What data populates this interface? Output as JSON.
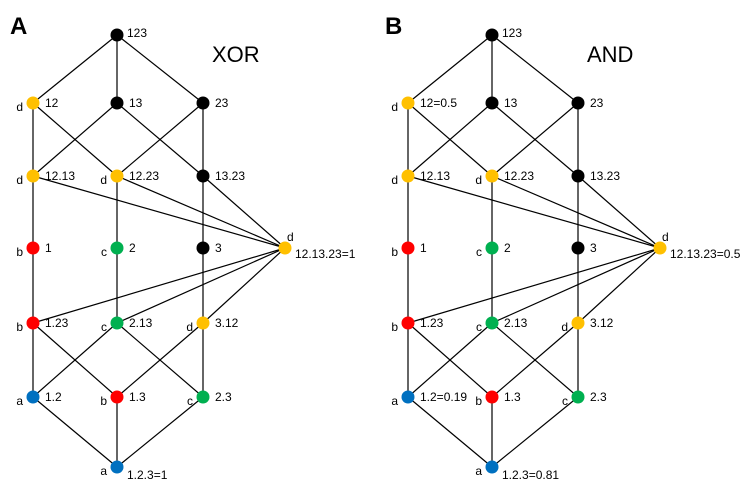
{
  "colors": {
    "black": "#000000",
    "yellow": "#FFC000",
    "red": "#FF0000",
    "green": "#00B050",
    "blue": "#0070C0"
  },
  "panels": [
    {
      "letter": "A",
      "title": "XOR",
      "nodes": {
        "n123": {
          "label": "123",
          "side": "",
          "color": "black"
        },
        "n12": {
          "label": "12",
          "side": "d",
          "color": "yellow"
        },
        "n13": {
          "label": "13",
          "side": "",
          "color": "black"
        },
        "n23": {
          "label": "23",
          "side": "",
          "color": "black"
        },
        "n12_13": {
          "label": "12.13",
          "side": "d",
          "color": "yellow"
        },
        "n12_23": {
          "label": "12.23",
          "side": "d",
          "color": "yellow"
        },
        "n13_23": {
          "label": "13.23",
          "side": "",
          "color": "black"
        },
        "n1": {
          "label": "1",
          "side": "b",
          "color": "red"
        },
        "n2": {
          "label": "2",
          "side": "c",
          "color": "green"
        },
        "n3": {
          "label": "3",
          "side": "",
          "color": "black"
        },
        "nD": {
          "label": "12.13.23=1",
          "side": "d",
          "color": "yellow"
        },
        "n1_23": {
          "label": "1.23",
          "side": "b",
          "color": "red"
        },
        "n2_13": {
          "label": "2.13",
          "side": "c",
          "color": "green"
        },
        "n3_12": {
          "label": "3.12",
          "side": "d",
          "color": "yellow"
        },
        "n1_2": {
          "label": "1.2",
          "side": "a",
          "color": "blue"
        },
        "n1_3": {
          "label": "1.3",
          "side": "b",
          "color": "red"
        },
        "n2_3": {
          "label": "2.3",
          "side": "c",
          "color": "green"
        },
        "nB": {
          "label": "1.2.3=1",
          "side": "a",
          "color": "blue"
        }
      }
    },
    {
      "letter": "B",
      "title": "AND",
      "nodes": {
        "n123": {
          "label": "123",
          "side": "",
          "color": "black"
        },
        "n12": {
          "label": "12=0.5",
          "side": "d",
          "color": "yellow"
        },
        "n13": {
          "label": "13",
          "side": "",
          "color": "black"
        },
        "n23": {
          "label": "23",
          "side": "",
          "color": "black"
        },
        "n12_13": {
          "label": "12.13",
          "side": "d",
          "color": "yellow"
        },
        "n12_23": {
          "label": "12.23",
          "side": "d",
          "color": "yellow"
        },
        "n13_23": {
          "label": "13.23",
          "side": "",
          "color": "black"
        },
        "n1": {
          "label": "1",
          "side": "b",
          "color": "red"
        },
        "n2": {
          "label": "2",
          "side": "c",
          "color": "green"
        },
        "n3": {
          "label": "3",
          "side": "",
          "color": "black"
        },
        "nD": {
          "label": "12.13.23=0.5",
          "side": "d",
          "color": "yellow"
        },
        "n1_23": {
          "label": "1.23",
          "side": "b",
          "color": "red"
        },
        "n2_13": {
          "label": "2.13",
          "side": "c",
          "color": "green"
        },
        "n3_12": {
          "label": "3.12",
          "side": "d",
          "color": "yellow"
        },
        "n1_2": {
          "label": "1.2=0.19",
          "side": "a",
          "color": "blue"
        },
        "n1_3": {
          "label": "1.3",
          "side": "b",
          "color": "red"
        },
        "n2_3": {
          "label": "2.3",
          "side": "c",
          "color": "green"
        },
        "nB": {
          "label": "1.2.3=0.81",
          "side": "a",
          "color": "blue"
        }
      }
    }
  ]
}
